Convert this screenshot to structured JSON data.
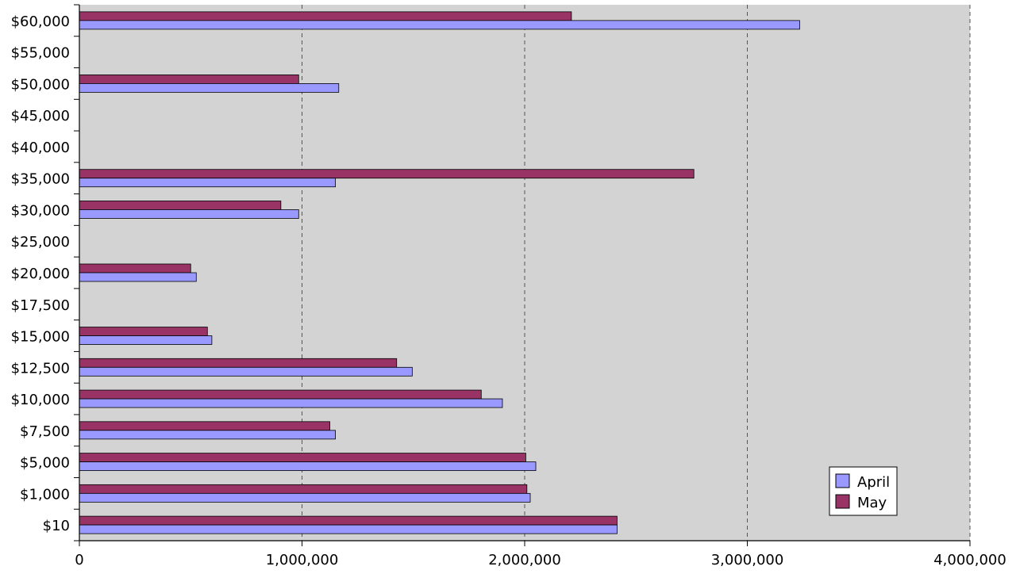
{
  "chart_data": {
    "type": "bar",
    "orientation": "horizontal",
    "title": "",
    "xlabel": "",
    "ylabel": "",
    "xlim": [
      0,
      4000000
    ],
    "x_ticks": [
      "0",
      "1,000,000",
      "2,000,000",
      "3,000,000",
      "4,000,000"
    ],
    "categories": [
      "$10",
      "$1,000",
      "$5,000",
      "$7,500",
      "$10,000",
      "$12,500",
      "$15,000",
      "$17,500",
      "$20,000",
      "$25,000",
      "$30,000",
      "$35,000",
      "$40,000",
      "$45,000",
      "$50,000",
      "$55,000",
      "$60,000"
    ],
    "series": [
      {
        "name": "April",
        "color": "#9999ff",
        "values": [
          2415000,
          2025000,
          2050000,
          1150000,
          1900000,
          1495000,
          595000,
          0,
          525000,
          0,
          985000,
          1150000,
          0,
          0,
          1165000,
          0,
          3235000
        ]
      },
      {
        "name": "May",
        "color": "#993366",
        "values": [
          2415000,
          2010000,
          2005000,
          1125000,
          1805000,
          1425000,
          575000,
          0,
          500000,
          0,
          905000,
          2760000,
          0,
          0,
          985000,
          0,
          2210000
        ]
      }
    ],
    "grid": "vertical dashed",
    "legend": "bottom-right",
    "plot_background": "#d3d3d3"
  }
}
